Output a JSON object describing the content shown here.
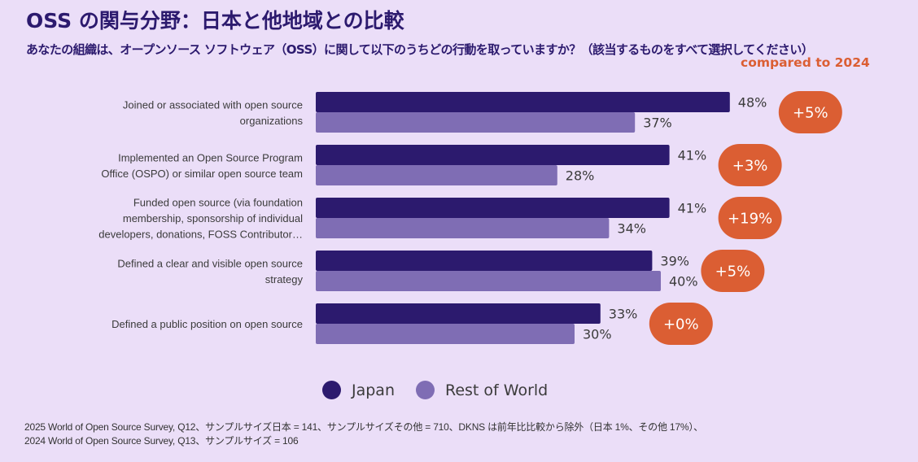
{
  "header": {
    "title": "OSS の関与分野：日本と他地域との比較",
    "subtitle": "あなたの組織は、オープンソース ソフトウェア（OSS）に関して以下のうちどの行動を取っていますか？（該当するものをすべて選択してください）",
    "comparison_label": "compared to 2024"
  },
  "colors": {
    "background": "#ebdef8",
    "japan": "#2c1a6e",
    "rest_of_world": "#7f6db4",
    "badge": "#db5e33",
    "title": "#2c1a6e"
  },
  "chart_data": {
    "type": "bar",
    "orientation": "horizontal",
    "title": "OSS の関与分野：日本と他地域との比較",
    "xlabel": "",
    "ylabel": "",
    "xlim": [
      0,
      50
    ],
    "grid": false,
    "legend_position": "bottom",
    "categories": [
      "Joined or associated with open source organizations",
      "Implemented an Open Source Program Office (OSPO) or similar open source team",
      "Funded open source (via foundation membership, sponsorship of individual developers, donations, FOSS Contributor…",
      "Defined a clear and visible open source strategy",
      "Defined a public position on open source"
    ],
    "category_lines": [
      [
        "Joined or associated with open source",
        "organizations"
      ],
      [
        "Implemented an Open Source Program",
        "Office (OSPO) or similar open source team"
      ],
      [
        "Funded open source (via foundation",
        "membership, sponsorship of individual",
        "developers, donations, FOSS Contributor…"
      ],
      [
        "Defined a clear and visible open source",
        "strategy"
      ],
      [
        "Defined a public position on open source"
      ]
    ],
    "series": [
      {
        "name": "Japan",
        "values": [
          48,
          41,
          41,
          39,
          33
        ],
        "labels": [
          "48%",
          "41%",
          "41%",
          "39%",
          "33%"
        ]
      },
      {
        "name": "Rest of World",
        "values": [
          37,
          28,
          34,
          40,
          30
        ],
        "labels": [
          "37%",
          "28%",
          "34%",
          "40%",
          "30%"
        ]
      }
    ],
    "change_vs_2024": {
      "label": "compared to 2024",
      "values": [
        5,
        3,
        19,
        5,
        0
      ],
      "labels": [
        "+5%",
        "+3%",
        "+19%",
        "+5%",
        "+0%"
      ]
    }
  },
  "legend": {
    "items": [
      {
        "label": "Japan"
      },
      {
        "label": "Rest of World"
      }
    ]
  },
  "footnote": {
    "lines": [
      "2025 World of Open Source Survey, Q12、サンプルサイズ日本 = 141、サンプルサイズその他 = 710、DKNS は前年比比較から除外（日本 1%、その他 17%）、",
      "2024 World of Open Source Survey, Q13、サンプルサイズ = 106"
    ]
  }
}
